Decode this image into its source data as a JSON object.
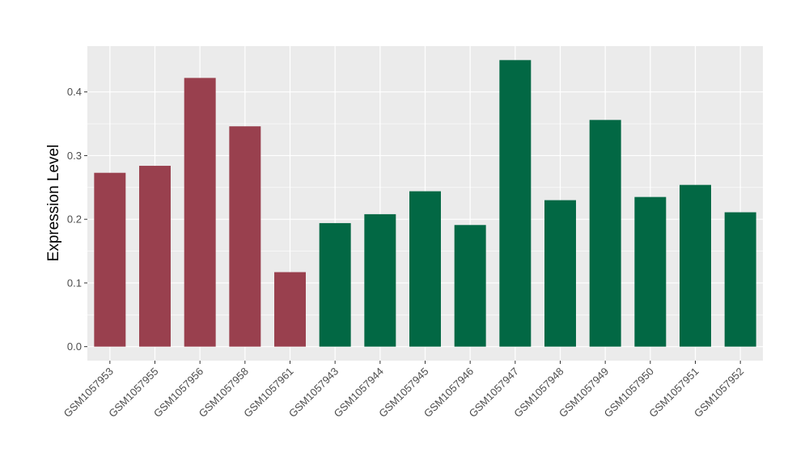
{
  "chart_data": {
    "type": "bar",
    "categories": [
      "GSM1057953",
      "GSM1057955",
      "GSM1057956",
      "GSM1057958",
      "GSM1057961",
      "GSM1057943",
      "GSM1057944",
      "GSM1057945",
      "GSM1057946",
      "GSM1057947",
      "GSM1057948",
      "GSM1057949",
      "GSM1057950",
      "GSM1057951",
      "GSM1057952"
    ],
    "values": [
      0.273,
      0.284,
      0.422,
      0.346,
      0.117,
      0.194,
      0.208,
      0.244,
      0.191,
      0.45,
      0.23,
      0.356,
      0.235,
      0.254,
      0.211
    ],
    "group": [
      "a",
      "a",
      "a",
      "a",
      "a",
      "b",
      "b",
      "b",
      "b",
      "b",
      "b",
      "b",
      "b",
      "b",
      "b"
    ],
    "group_colors": {
      "a": "#99404e",
      "b": "#026844"
    },
    "xlabel": "",
    "ylabel": "Expression Level",
    "ylim": [
      -0.022,
      0.472
    ],
    "yticks": [
      0.0,
      0.1,
      0.2,
      0.3,
      0.4
    ],
    "ytick_labels": [
      "0.0",
      "0.1",
      "0.2",
      "0.3",
      "0.4"
    ],
    "grid": true,
    "panel_background": "#ebebeb",
    "grid_color": "#ffffff"
  }
}
